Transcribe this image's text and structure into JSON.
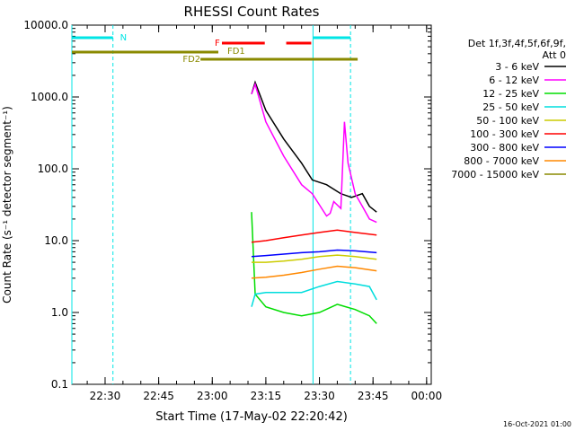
{
  "chart_data": {
    "type": "line",
    "title": "RHESSI Count Rates",
    "xlabel": "Start Time (17-May-02 22:20:42)",
    "ylabel": "Count Rate (s⁻¹ detector segment⁻¹)",
    "y_scale": "log",
    "ylim": [
      0.1,
      10000
    ],
    "xlim_minutes_since_22_20_42": [
      0,
      100.6
    ],
    "x_tick_labels": [
      "22:30",
      "22:45",
      "23:00",
      "23:15",
      "23:30",
      "23:45",
      "00:00"
    ],
    "y_tick_labels": [
      "0.1",
      "1.0",
      "10.0",
      "100.0",
      "1000.0",
      "10000.0"
    ],
    "legend_header": [
      "Det 1f,3f,4f,5f,6f,9f,",
      "Att 0"
    ],
    "legend_position": "right-outside",
    "footer_date": "16-Oct-2021 01:00",
    "flags": [
      {
        "label": "N",
        "color": "#00e5e5"
      },
      {
        "label": "F",
        "color": "#ff0000"
      },
      {
        "label": "FD1",
        "color": "#8a8a00"
      },
      {
        "label": "FD2",
        "color": "#8a8a00"
      }
    ],
    "series": [
      {
        "name": "3 - 6 keV",
        "color": "#000000",
        "x": [
          "23:11",
          "23:12",
          "23:15",
          "23:20",
          "23:25",
          "23:28",
          "23:32",
          "23:36",
          "23:39",
          "23:42",
          "23:44",
          "23:46"
        ],
        "values": [
          1100,
          1600,
          650,
          260,
          120,
          70,
          60,
          45,
          40,
          45,
          30,
          25
        ]
      },
      {
        "name": "6 - 12 keV",
        "color": "#ff00ff",
        "x": [
          "23:11",
          "23:12",
          "23:15",
          "23:20",
          "23:25",
          "23:28",
          "23:32",
          "23:33",
          "23:34",
          "23:36",
          "23:37",
          "23:38",
          "23:40",
          "23:42",
          "23:44",
          "23:46"
        ],
        "values": [
          1100,
          1500,
          450,
          150,
          60,
          45,
          22,
          24,
          35,
          28,
          450,
          120,
          45,
          30,
          20,
          18
        ]
      },
      {
        "name": "12 - 25 keV",
        "color": "#00dd00",
        "x": [
          "23:11",
          "23:12",
          "23:15",
          "23:20",
          "23:25",
          "23:30",
          "23:35",
          "23:40",
          "23:44",
          "23:46"
        ],
        "values": [
          25,
          1.8,
          1.2,
          1.0,
          0.9,
          1.0,
          1.3,
          1.1,
          0.9,
          0.7
        ]
      },
      {
        "name": "25 - 50 keV",
        "color": "#00dddd",
        "x": [
          "23:11",
          "23:12",
          "23:15",
          "23:20",
          "23:25",
          "23:30",
          "23:35",
          "23:40",
          "23:44",
          "23:46"
        ],
        "values": [
          1.2,
          1.8,
          1.9,
          1.9,
          1.9,
          2.3,
          2.7,
          2.5,
          2.3,
          1.5
        ]
      },
      {
        "name": "50 - 100 keV",
        "color": "#cccc00",
        "x": [
          "23:11",
          "23:15",
          "23:20",
          "23:25",
          "23:30",
          "23:35",
          "23:40",
          "23:46"
        ],
        "values": [
          5.0,
          5.0,
          5.2,
          5.5,
          6.0,
          6.3,
          6.0,
          5.5
        ]
      },
      {
        "name": "100 - 300 keV",
        "color": "#ff0000",
        "x": [
          "23:11",
          "23:15",
          "23:20",
          "23:25",
          "23:30",
          "23:35",
          "23:40",
          "23:46"
        ],
        "values": [
          9.5,
          10,
          11,
          12,
          13,
          14,
          13,
          12
        ]
      },
      {
        "name": "300 - 800 keV",
        "color": "#0000ff",
        "x": [
          "23:11",
          "23:15",
          "23:20",
          "23:25",
          "23:30",
          "23:35",
          "23:40",
          "23:46"
        ],
        "values": [
          6.0,
          6.2,
          6.5,
          6.8,
          7.0,
          7.4,
          7.2,
          6.8
        ]
      },
      {
        "name": "800 - 7000 keV",
        "color": "#ff8800",
        "x": [
          "23:11",
          "23:15",
          "23:20",
          "23:25",
          "23:30",
          "23:35",
          "23:40",
          "23:46"
        ],
        "values": [
          3.0,
          3.1,
          3.3,
          3.6,
          4.0,
          4.4,
          4.2,
          3.8
        ]
      },
      {
        "name": "7000 - 15000 keV",
        "color": "#8a8a00",
        "x": [],
        "values": []
      }
    ]
  }
}
